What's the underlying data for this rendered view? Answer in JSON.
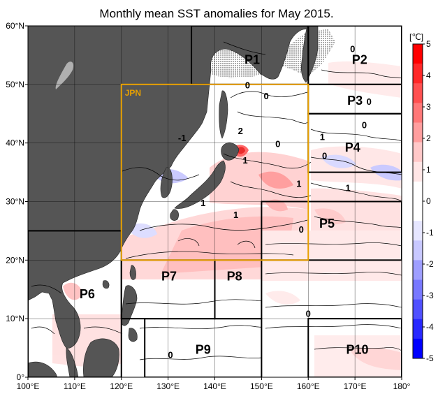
{
  "title": "Monthly mean SST anomalies for May 2015.",
  "map": {
    "lon_range": [
      100,
      180
    ],
    "lat_range": [
      0,
      60
    ],
    "x_ticks": [
      {
        "value": 100,
        "label": "100°E"
      },
      {
        "value": 110,
        "label": "110°E"
      },
      {
        "value": 120,
        "label": "120°E"
      },
      {
        "value": 130,
        "label": "130°E"
      },
      {
        "value": 140,
        "label": "140°E"
      },
      {
        "value": 150,
        "label": "150°E"
      },
      {
        "value": 160,
        "label": "160°E"
      },
      {
        "value": 170,
        "label": "170°E"
      },
      {
        "value": 180,
        "label": "180°"
      }
    ],
    "y_ticks": [
      {
        "value": 0,
        "label": "0°"
      },
      {
        "value": 10,
        "label": "10°N"
      },
      {
        "value": 20,
        "label": "20°N"
      },
      {
        "value": 30,
        "label": "30°N"
      },
      {
        "value": 40,
        "label": "40°N"
      },
      {
        "value": 50,
        "label": "50°N"
      },
      {
        "value": 60,
        "label": "60°N"
      }
    ],
    "grid": true,
    "land_color": "#555555",
    "sea_ice_pattern": "dotted",
    "jpn_box": {
      "label": "JPN",
      "lon": [
        120,
        160
      ],
      "lat": [
        20,
        50
      ],
      "color": "#e8a000"
    },
    "regions": [
      {
        "name": "P1",
        "lon": [
          135,
          160
        ],
        "lat": [
          50,
          60
        ],
        "label_at": [
          148,
          53.5
        ]
      },
      {
        "name": "P2",
        "lon": [
          160,
          180
        ],
        "lat": [
          50,
          60
        ],
        "label_at": [
          171,
          53.5
        ]
      },
      {
        "name": "P3",
        "lon": [
          160,
          180
        ],
        "lat": [
          45,
          50
        ],
        "label_at": [
          170,
          46.5
        ]
      },
      {
        "name": "P4",
        "lon": [
          160,
          180
        ],
        "lat": [
          35,
          45
        ],
        "label_at": [
          169.5,
          38.5
        ]
      },
      {
        "name": "P5",
        "lon": [
          150,
          180
        ],
        "lat": [
          20,
          30
        ],
        "label_at": [
          164,
          25.5
        ]
      },
      {
        "name": "P6",
        "lon": [
          100,
          120
        ],
        "lat": [
          0,
          25
        ],
        "label_at": [
          112.7,
          13.5
        ]
      },
      {
        "name": "P7",
        "lon": [
          120,
          140
        ],
        "lat": [
          10,
          20
        ],
        "label_at": [
          130.2,
          16.5
        ]
      },
      {
        "name": "P8",
        "lon": [
          140,
          150
        ],
        "lat": [
          10,
          20
        ],
        "label_at": [
          144.2,
          16.5
        ]
      },
      {
        "name": "P9",
        "lon": [
          125,
          150
        ],
        "lat": [
          0,
          10
        ],
        "label_at": [
          137.5,
          4
        ]
      },
      {
        "name": "P10",
        "lon": [
          160,
          180
        ],
        "lat": [
          0,
          10
        ],
        "label_at": [
          170.5,
          4
        ]
      }
    ],
    "contour_labels": [
      {
        "text": "-1",
        "lon": 133,
        "lat": 40.3
      },
      {
        "text": "2",
        "lon": 145.5,
        "lat": 41.5
      },
      {
        "text": "0",
        "lon": 147,
        "lat": 49.3
      },
      {
        "text": "0",
        "lon": 151,
        "lat": 47.5
      },
      {
        "text": "0",
        "lon": 153.5,
        "lat": 39.3
      },
      {
        "text": "1",
        "lon": 146.5,
        "lat": 36.5
      },
      {
        "text": "1",
        "lon": 158,
        "lat": 32.5
      },
      {
        "text": "1",
        "lon": 163,
        "lat": 40.5
      },
      {
        "text": "0",
        "lon": 163.5,
        "lat": 37.3
      },
      {
        "text": "0",
        "lon": 172,
        "lat": 42.5
      },
      {
        "text": "0",
        "lon": 173,
        "lat": 46.5
      },
      {
        "text": "0",
        "lon": 169.5,
        "lat": 55.5
      },
      {
        "text": "1",
        "lon": 168.5,
        "lat": 31.8
      },
      {
        "text": "1",
        "lon": 137.5,
        "lat": 29.2
      },
      {
        "text": "1",
        "lon": 144.5,
        "lat": 27.2
      },
      {
        "text": "0",
        "lon": 158.5,
        "lat": 24.7
      },
      {
        "text": "0",
        "lon": 160,
        "lat": 10.3
      },
      {
        "text": "0",
        "lon": 130.5,
        "lat": 3.3
      }
    ]
  },
  "colorbar": {
    "unit": "[℃]",
    "vmin": -5,
    "vmax": 5,
    "ticks": [
      5,
      4,
      3,
      2,
      1,
      0,
      -1,
      -2,
      -3,
      -4,
      -5
    ],
    "tick_labels": [
      "5",
      "4",
      "3",
      "2",
      "1",
      "0",
      "-1",
      "-2",
      "-3",
      "-4",
      "-5"
    ],
    "colors": [
      "#ff0000",
      "#ff2828",
      "#ff5050",
      "#ff7878",
      "#ff9e9e",
      "#ffc8c8",
      "#ffe6e6",
      "#ffffff",
      "#ffffff",
      "#e6e6ff",
      "#c8c8ff",
      "#9e9eff",
      "#7878ff",
      "#5050ff",
      "#2828ff",
      "#0000ff"
    ]
  }
}
